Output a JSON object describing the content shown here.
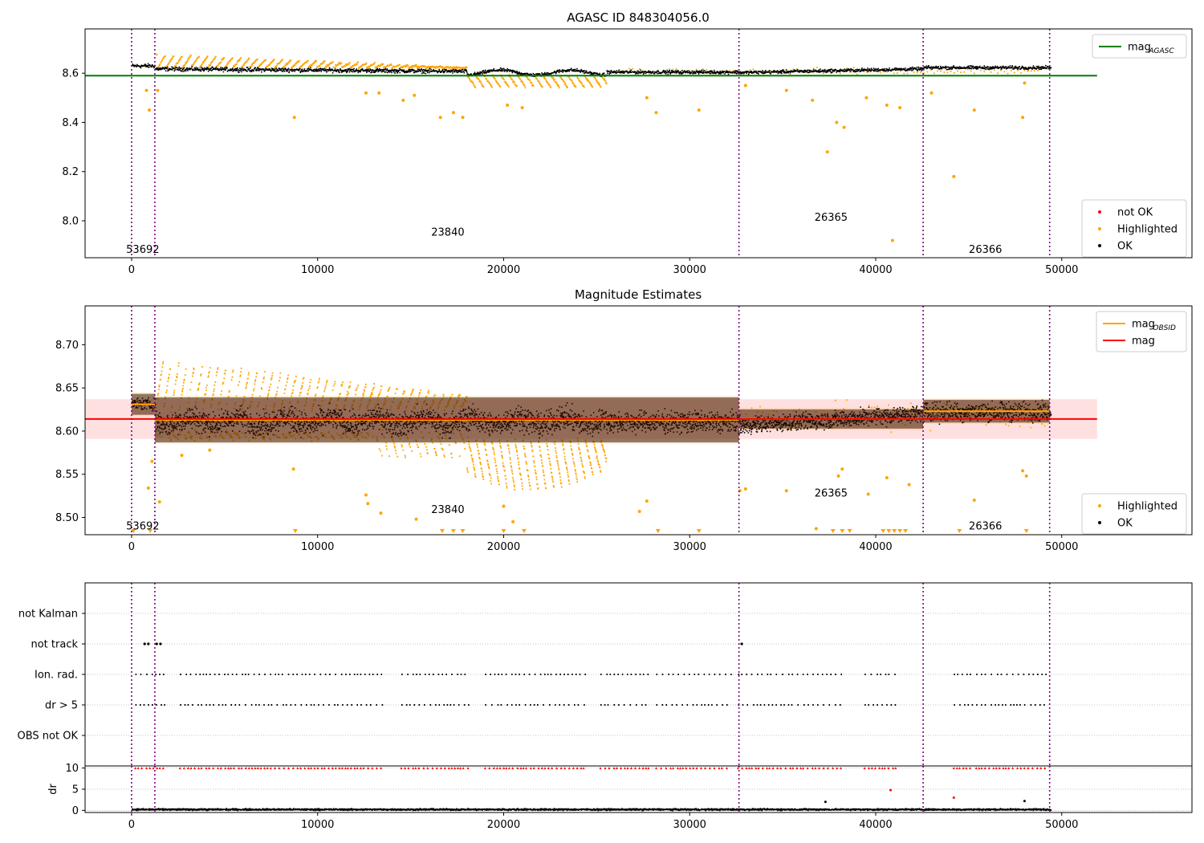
{
  "chart_data": [
    {
      "type": "scatter",
      "title": "AGASC ID 848304056.0",
      "xlim": [
        -2500,
        57000
      ],
      "ylim": [
        7.85,
        8.78
      ],
      "xticks": [
        0,
        10000,
        20000,
        30000,
        40000,
        50000
      ],
      "yticks": [
        8.0,
        8.2,
        8.4,
        8.6
      ],
      "ytick_labels": [
        "8.0",
        "8.2",
        "8.4",
        "8.6"
      ],
      "obs_boundaries": [
        0,
        1250,
        32650,
        42550,
        49350
      ],
      "obs_labels": [
        {
          "text": "53692",
          "x": 600,
          "y": 7.87
        },
        {
          "text": "23840",
          "x": 17000,
          "y": 7.94
        },
        {
          "text": "26365",
          "x": 37600,
          "y": 8.0
        },
        {
          "text": "26366",
          "x": 45900,
          "y": 7.87
        }
      ],
      "series": [
        {
          "name": "mag_AGASC",
          "kind": "hline",
          "y": 8.59,
          "x_range": [
            -2500,
            51900
          ],
          "color": "#008000"
        },
        {
          "name": "not OK",
          "kind": "points",
          "color": "#ff0000",
          "points": []
        },
        {
          "name": "Highlighted",
          "kind": "points",
          "color": "#ffa500",
          "points": [
            [
              800,
              8.53
            ],
            [
              950,
              8.45
            ],
            [
              1400,
              8.53
            ],
            [
              8750,
              8.42
            ],
            [
              12600,
              8.52
            ],
            [
              13300,
              8.52
            ],
            [
              14600,
              8.49
            ],
            [
              15200,
              8.51
            ],
            [
              16600,
              8.42
            ],
            [
              17300,
              8.44
            ],
            [
              17800,
              8.42
            ],
            [
              20200,
              8.47
            ],
            [
              21000,
              8.46
            ],
            [
              27700,
              8.5
            ],
            [
              28200,
              8.44
            ],
            [
              30500,
              8.45
            ],
            [
              33000,
              8.55
            ],
            [
              35200,
              8.53
            ],
            [
              36600,
              8.49
            ],
            [
              37400,
              8.28
            ],
            [
              37900,
              8.4
            ],
            [
              38300,
              8.38
            ],
            [
              39500,
              8.5
            ],
            [
              40600,
              8.47
            ],
            [
              40900,
              7.92
            ],
            [
              41300,
              8.46
            ],
            [
              43000,
              8.52
            ],
            [
              44200,
              8.18
            ],
            [
              45300,
              8.45
            ],
            [
              47900,
              8.42
            ],
            [
              48000,
              8.56
            ]
          ]
        },
        {
          "name": "OK",
          "kind": "points",
          "color": "#000000",
          "points": []
        }
      ],
      "legends": [
        {
          "placement": "upper-right",
          "entries": [
            {
              "label": "mag",
              "sub": "AGASC",
              "color": "#008000",
              "style": "line"
            }
          ]
        },
        {
          "placement": "lower-right",
          "entries": [
            {
              "label": "not OK",
              "color": "#ff0000",
              "style": "dot"
            },
            {
              "label": "Highlighted",
              "color": "#ffa500",
              "style": "dot"
            },
            {
              "label": "OK",
              "color": "#000000",
              "style": "dot"
            }
          ]
        }
      ]
    },
    {
      "type": "scatter",
      "title": "Magnitude Estimates",
      "xlim": [
        -2500,
        57000
      ],
      "ylim": [
        8.48,
        8.745
      ],
      "xticks": [
        0,
        10000,
        20000,
        30000,
        40000,
        50000
      ],
      "yticks": [
        8.5,
        8.55,
        8.6,
        8.65,
        8.7
      ],
      "ytick_labels": [
        "8.50",
        "8.55",
        "8.60",
        "8.65",
        "8.70"
      ],
      "obs_boundaries": [
        0,
        1250,
        32650,
        42550,
        49350
      ],
      "obs_labels": [
        {
          "text": "53692",
          "x": 600,
          "y": 8.486
        },
        {
          "text": "23840",
          "x": 17000,
          "y": 8.505
        },
        {
          "text": "26365",
          "x": 37600,
          "y": 8.524
        },
        {
          "text": "26366",
          "x": 45900,
          "y": 8.486
        }
      ],
      "mag": {
        "value": 8.614,
        "band": [
          8.591,
          8.637
        ],
        "x_range": [
          -2500,
          51900
        ],
        "color": "#ff0000"
      },
      "obsid_mags": [
        {
          "x": [
            0,
            1250
          ],
          "value": 8.631,
          "band": [
            8.617,
            8.645
          ]
        },
        {
          "x": [
            1250,
            32650
          ],
          "value": 8.613,
          "band": [
            8.585,
            8.641
          ]
        },
        {
          "x": [
            32650,
            42550
          ],
          "value": 8.614,
          "band": [
            8.601,
            8.627
          ]
        },
        {
          "x": [
            42550,
            49350
          ],
          "value": 8.623,
          "band": [
            8.608,
            8.638
          ]
        }
      ],
      "highlighted_outliers": [
        [
          900,
          8.534
        ],
        [
          1100,
          8.565
        ],
        [
          1500,
          8.518
        ],
        [
          2700,
          8.572
        ],
        [
          4200,
          8.578
        ],
        [
          8700,
          8.556
        ],
        [
          12600,
          8.526
        ],
        [
          12700,
          8.516
        ],
        [
          13400,
          8.505
        ],
        [
          15300,
          8.498
        ],
        [
          20000,
          8.513
        ],
        [
          20500,
          8.495
        ],
        [
          27300,
          8.507
        ],
        [
          27700,
          8.519
        ],
        [
          32700,
          8.531
        ],
        [
          33000,
          8.533
        ],
        [
          35200,
          8.531
        ],
        [
          36800,
          8.487
        ],
        [
          38000,
          8.548
        ],
        [
          38200,
          8.556
        ],
        [
          39600,
          8.527
        ],
        [
          40600,
          8.546
        ],
        [
          41800,
          8.538
        ],
        [
          45300,
          8.52
        ],
        [
          47900,
          8.554
        ],
        [
          48100,
          8.548
        ]
      ],
      "offscale_markers": [
        100,
        1000,
        8800,
        16700,
        17300,
        17800,
        20000,
        21100,
        28300,
        30500,
        37700,
        38200,
        38600,
        40400,
        40700,
        41000,
        41300,
        41600,
        44500,
        48100
      ],
      "series": [
        {
          "name": "Highlighted",
          "color": "#ffa500"
        },
        {
          "name": "OK",
          "color": "#000000"
        }
      ],
      "legends": [
        {
          "placement": "upper-right",
          "entries": [
            {
              "label": "mag",
              "sub": "OBSID",
              "color": "#ffa500",
              "style": "line"
            },
            {
              "label": "mag",
              "color": "#ff0000",
              "style": "line"
            }
          ]
        },
        {
          "placement": "lower-right",
          "entries": [
            {
              "label": "Highlighted",
              "color": "#ffa500",
              "style": "dot"
            },
            {
              "label": "OK",
              "color": "#000000",
              "style": "dot"
            }
          ]
        }
      ]
    },
    {
      "type": "scatter",
      "title": "",
      "xlim": [
        -2500,
        57000
      ],
      "categories": [
        "not Kalman",
        "not track",
        "Ion. rad.",
        "dr > 5",
        "OBS not OK"
      ],
      "obs_boundaries": [
        0,
        1250,
        32650,
        42550,
        49350
      ],
      "flags": {
        "not track": [
          700,
          900,
          1350,
          1550,
          32800
        ],
        "Ion. rad.": [
          {
            "from": 200,
            "to": 1800
          },
          {
            "from": 2600,
            "to": 13500
          },
          {
            "from": 14500,
            "to": 18100
          },
          {
            "from": 19000,
            "to": 24400
          },
          {
            "from": 25200,
            "to": 27800
          },
          {
            "from": 28200,
            "to": 32200
          },
          {
            "from": 32600,
            "to": 36400
          },
          {
            "from": 36600,
            "to": 38200
          },
          {
            "from": 39400,
            "to": 41200
          },
          {
            "from": 44200,
            "to": 45200
          },
          {
            "from": 45400,
            "to": 49300
          }
        ],
        "dr > 5": [
          {
            "from": 200,
            "to": 1800
          },
          {
            "from": 2600,
            "to": 13500
          },
          {
            "from": 14500,
            "to": 18100
          },
          {
            "from": 19000,
            "to": 24400
          },
          {
            "from": 25200,
            "to": 27800
          },
          {
            "from": 28200,
            "to": 32200
          },
          {
            "from": 32600,
            "to": 36400
          },
          {
            "from": 36600,
            "to": 38200
          },
          {
            "from": 39400,
            "to": 41200
          },
          {
            "from": 44200,
            "to": 45200
          },
          {
            "from": 45400,
            "to": 49300
          }
        ]
      }
    },
    {
      "type": "scatter",
      "title": "",
      "ylabel": "dr",
      "xlim": [
        -2500,
        57000
      ],
      "ylim": [
        -0.5,
        10.5
      ],
      "xticks": [
        0,
        10000,
        20000,
        30000,
        40000,
        50000
      ],
      "yticks": [
        0,
        5,
        10
      ],
      "obs_boundaries": [
        0,
        1250,
        32650,
        42550,
        49350
      ],
      "clipped_dr_value": 10,
      "clipped_ranges": [
        {
          "from": 200,
          "to": 1800
        },
        {
          "from": 2600,
          "to": 13500
        },
        {
          "from": 14500,
          "to": 18100
        },
        {
          "from": 19000,
          "to": 24400
        },
        {
          "from": 25200,
          "to": 27800
        },
        {
          "from": 28200,
          "to": 32200
        },
        {
          "from": 32600,
          "to": 36400
        },
        {
          "from": 36600,
          "to": 38200
        },
        {
          "from": 39400,
          "to": 41200
        },
        {
          "from": 44200,
          "to": 45200
        },
        {
          "from": 45400,
          "to": 49300
        }
      ],
      "outliers": [
        [
          40800,
          4.8,
          "#ff0000"
        ],
        [
          44200,
          3.0,
          "#ff0000"
        ],
        [
          37300,
          2.0,
          "#000000"
        ],
        [
          48000,
          2.2,
          "#000000"
        ]
      ]
    }
  ]
}
